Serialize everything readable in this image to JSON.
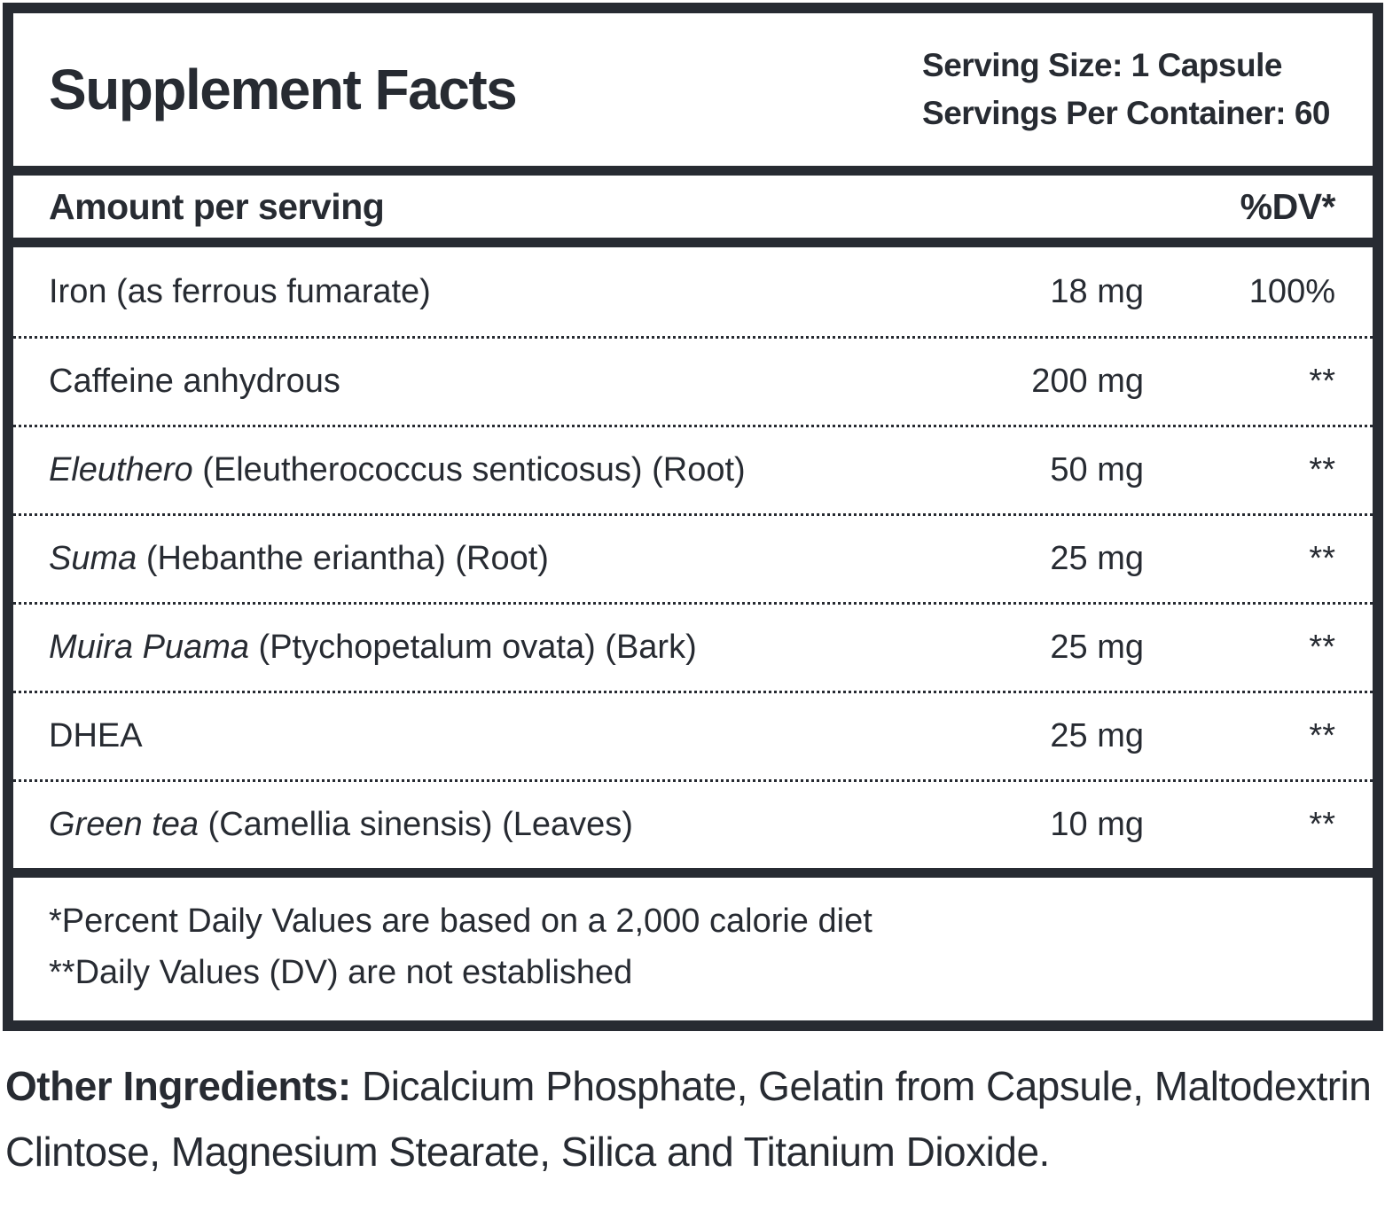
{
  "label": {
    "title": "Supplement Facts",
    "serving_size": "Serving Size: 1 Capsule",
    "servings_per_container": "Servings Per Container: 60",
    "column_header": {
      "left": "Amount per serving",
      "right": "%DV*"
    },
    "rows": [
      {
        "name_italic": "",
        "name_rest": "Iron (as ferrous fumarate)",
        "amount": "18 mg",
        "dv": "100%"
      },
      {
        "name_italic": "",
        "name_rest": "Caffeine anhydrous",
        "amount": "200 mg",
        "dv": "**"
      },
      {
        "name_italic": "Eleuthero",
        "name_rest": " (Eleutherococcus senticosus) (Root)",
        "amount": "50 mg",
        "dv": "**"
      },
      {
        "name_italic": "Suma",
        "name_rest": " (Hebanthe eriantha) (Root)",
        "amount": "25 mg",
        "dv": "**"
      },
      {
        "name_italic": "Muira Puama",
        "name_rest": " (Ptychopetalum ovata) (Bark)",
        "amount": "25 mg",
        "dv": "**"
      },
      {
        "name_italic": "",
        "name_rest": "DHEA",
        "amount": "25 mg",
        "dv": "**"
      },
      {
        "name_italic": "Green tea",
        "name_rest": " (Camellia sinensis) (Leaves)",
        "amount": "10 mg",
        "dv": "**"
      }
    ],
    "footnotes": [
      "*Percent Daily Values are based on a 2,000 calorie diet",
      "**Daily Values (DV) are not established"
    ],
    "other_ingredients_label": "Other Ingredients:",
    "other_ingredients_text": " Dicalcium Phosphate, Gelatin from Capsule, Maltodextrin Clintose, Magnesium Stearate, Silica and Titanium Dioxide.",
    "colors": {
      "ink": "#272b32",
      "background": "#ffffff"
    }
  }
}
